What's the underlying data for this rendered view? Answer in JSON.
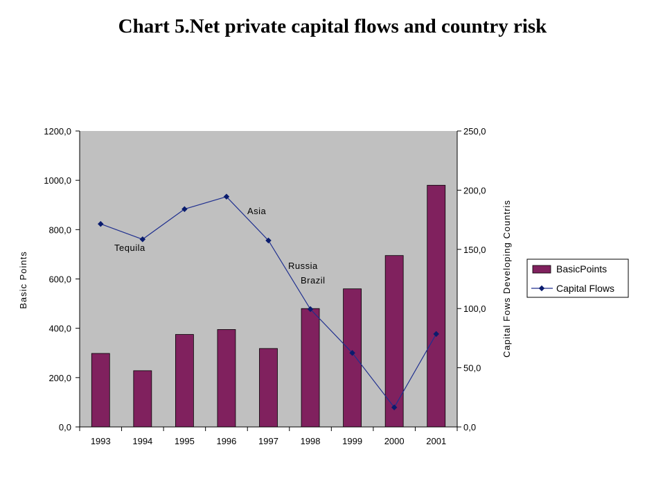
{
  "page": {
    "title": "Chart 5.Net private capital flows and country risk"
  },
  "colors": {
    "plot_background": "#c0c0c0",
    "bar_fill": "#80215e",
    "line": "#1f2f8f",
    "marker": "#0a1c6e"
  },
  "chart_data": {
    "type": "bar",
    "title": "Chart 5.Net private capital flows and country risk",
    "categories": [
      "1993",
      "1994",
      "1995",
      "1996",
      "1997",
      "1998",
      "1999",
      "2000",
      "2001"
    ],
    "series": [
      {
        "name": "BasicPoints",
        "type": "bar",
        "axis": "left",
        "values": [
          298,
          228,
          375,
          395,
          318,
          480,
          560,
          695,
          980
        ]
      },
      {
        "name": "Capital Flows",
        "type": "line",
        "axis": "right",
        "values": [
          171.5,
          158.5,
          184,
          194.5,
          157.5,
          99.5,
          62.5,
          16.5,
          78.5
        ]
      }
    ],
    "ylabel": "Basic Points",
    "y2label": "Capital Fows Developing Countris",
    "ylim": [
      0,
      1200
    ],
    "y2lim": [
      0,
      250
    ],
    "yticks": [
      "0,0",
      "200,0",
      "400,0",
      "600,0",
      "800,0",
      "1000,0",
      "1200,0"
    ],
    "y2ticks": [
      "0,0",
      "50,0",
      "100,0",
      "150,0",
      "200,0",
      "250,0"
    ],
    "annotations": [
      "Tequila",
      "Asia",
      "Russia",
      "Brazil"
    ],
    "legend": "right",
    "grid": false
  }
}
